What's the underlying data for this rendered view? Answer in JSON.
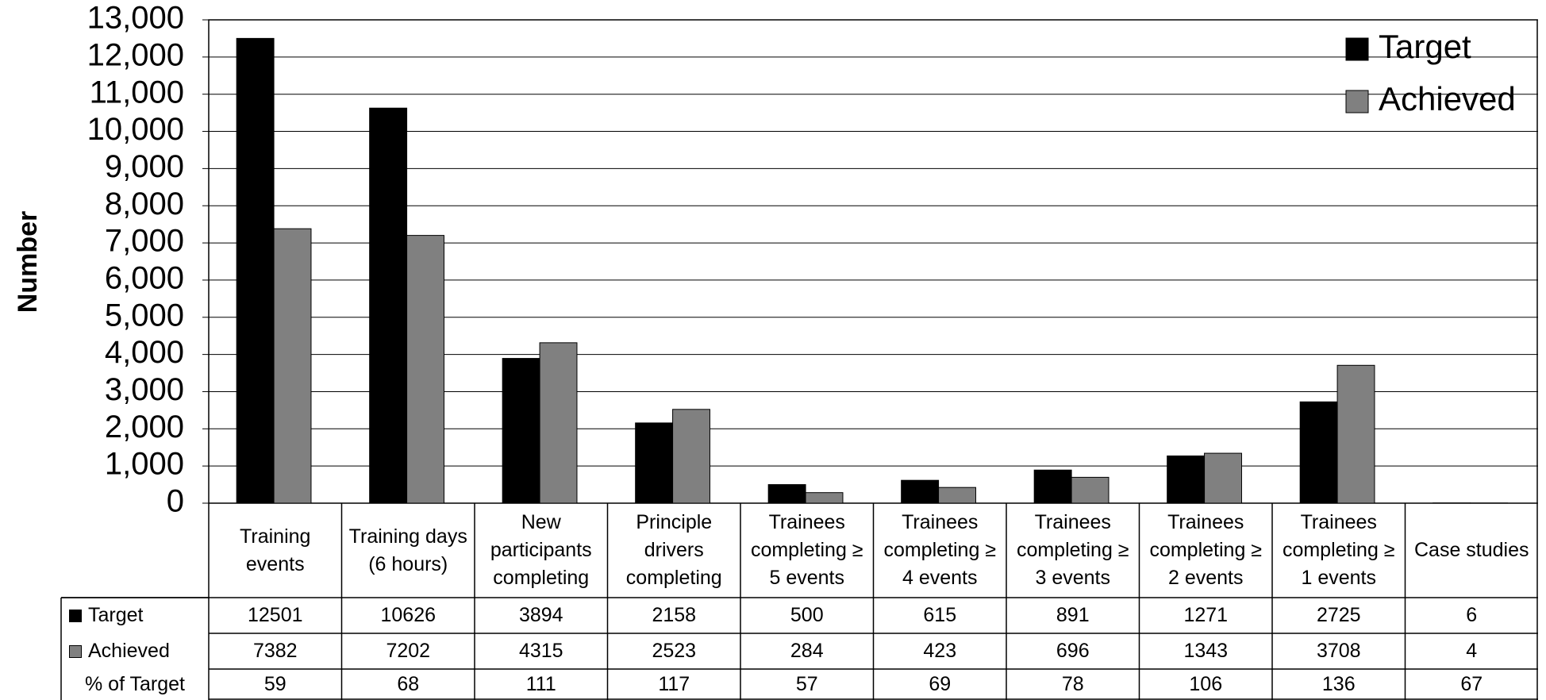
{
  "chart_data": {
    "type": "bar",
    "y_label": "Number",
    "categories": [
      "Training events",
      "Training days (6 hours)",
      "New participants completing",
      "Principle drivers completing",
      "Trainees completing ≥ 5 events",
      "Trainees completing ≥ 4 events",
      "Trainees completing ≥ 3 events",
      "Trainees completing ≥ 2 events",
      "Trainees completing ≥ 1 events",
      "Case studies"
    ],
    "series": [
      {
        "name": "Target",
        "color": "#000000",
        "values": [
          12501,
          10626,
          3894,
          2158,
          500,
          615,
          891,
          1271,
          2725,
          6
        ]
      },
      {
        "name": "Achieved",
        "color": "#808080",
        "values": [
          7382,
          7202,
          4315,
          2523,
          284,
          423,
          696,
          1343,
          3708,
          4
        ]
      }
    ],
    "percent_row": {
      "name": "% of Target",
      "values": [
        59,
        68,
        111,
        117,
        57,
        69,
        78,
        106,
        136,
        67
      ]
    },
    "ylim": [
      0,
      13000
    ],
    "yticks": [
      0,
      {
        "value": 1000,
        "label": "1,000"
      },
      {
        "value": 2000,
        "label": "2,000"
      },
      {
        "value": 3000,
        "label": "3,000"
      },
      {
        "value": 4000,
        "label": "4,000"
      },
      {
        "value": 5000,
        "label": "5,000"
      },
      {
        "value": 6000,
        "label": "6,000"
      },
      {
        "value": 7000,
        "label": "7,000"
      },
      {
        "value": 8000,
        "label": "8,000"
      },
      {
        "value": 9000,
        "label": "9,000"
      },
      {
        "value": 10000,
        "label": "10,000"
      },
      {
        "value": 11000,
        "label": "11,000"
      },
      {
        "value": 12000,
        "label": "12,000"
      },
      {
        "value": 13000,
        "label": "13,000"
      }
    ],
    "grid": true,
    "legend": "top-right"
  }
}
